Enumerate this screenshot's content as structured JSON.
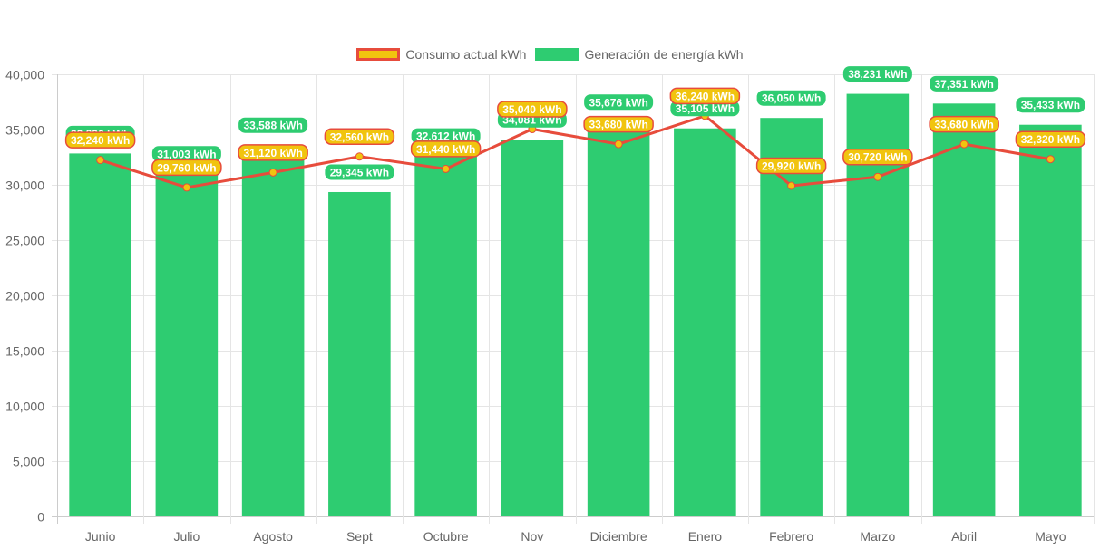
{
  "chart_data": {
    "type": "bar",
    "title": "",
    "xlabel": "",
    "ylabel": "",
    "ylim": [
      0,
      40000
    ],
    "yticks": [
      0,
      5000,
      10000,
      15000,
      20000,
      25000,
      30000,
      35000,
      40000
    ],
    "grid": true,
    "legend_position": "top",
    "categories": [
      "Junio",
      "Julio",
      "Agosto",
      "Sept",
      "Octubre",
      "Nov",
      "Diciembre",
      "Enero",
      "Febrero",
      "Marzo",
      "Abril",
      "Mayo"
    ],
    "series": [
      {
        "name": "Consumo actual kWh",
        "type": "line",
        "color": "#e74c3c",
        "point_color": "#f1c40f",
        "label_fill": "#f1c40f",
        "label_border": "#e74c3c",
        "values": [
          32240,
          29760,
          31120,
          32560,
          31440,
          35040,
          33680,
          36240,
          29920,
          30720,
          33680,
          32320
        ]
      },
      {
        "name": "Generación de energía kWh",
        "type": "bar",
        "color": "#2ecc71",
        "label_fill": "#2ecc71",
        "values": [
          32836,
          31003,
          33588,
          29345,
          32612,
          34081,
          35676,
          35105,
          36050,
          38231,
          37351,
          35433
        ]
      }
    ],
    "label_suffix": " kWh"
  },
  "legend": {
    "items": [
      "Consumo actual kWh",
      "Generación de energía kWh"
    ]
  }
}
